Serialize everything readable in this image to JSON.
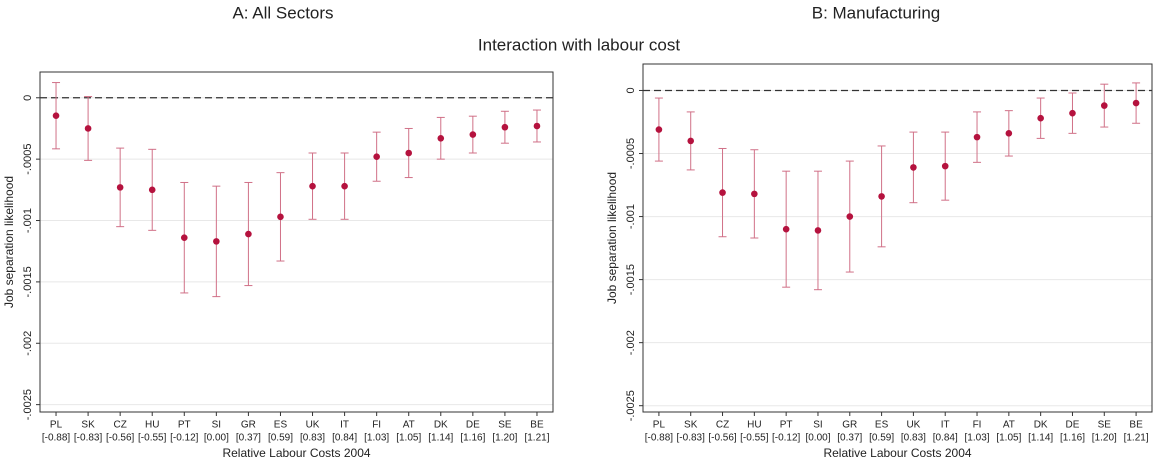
{
  "title": "Interaction with labour cost",
  "chart_data": [
    {
      "type": "errorbar",
      "title": "A: All Sectors",
      "x_label": "Relative Labour Costs 2004",
      "y_label": "Job separation likelihood",
      "categories": [
        "PL",
        "SK",
        "CZ",
        "HU",
        "PT",
        "SI",
        "GR",
        "ES",
        "UK",
        "IT",
        "FI",
        "AT",
        "DK",
        "DE",
        "SE",
        "BE"
      ],
      "category_sublabels": [
        "[-0.88]",
        "[-0.83]",
        "[-0.56]",
        "[-0.55]",
        "[-0.12]",
        "[0.00]",
        "[0.37]",
        "[0.59]",
        "[0.83]",
        "[0.84]",
        "[1.03]",
        "[1.05]",
        "[1.14]",
        "[1.16]",
        "[1.20]",
        "[1.21]"
      ],
      "values": [
        -0.000146,
        -0.00025,
        -0.00073,
        -0.00075,
        -0.00114,
        -0.00117,
        -0.00111,
        -0.00097,
        -0.00072,
        -0.00072,
        -0.00048,
        -0.00045,
        -0.00033,
        -0.0003,
        -0.00024,
        -0.00023
      ],
      "errors": [
        0.00027,
        0.00026,
        0.00032,
        0.00033,
        0.00045,
        0.00045,
        0.00042,
        0.00036,
        0.00027,
        0.00027,
        0.0002,
        0.0002,
        0.00017,
        0.00015,
        0.00013,
        0.00013
      ],
      "color": "#b5123e",
      "error_color": "#d07087",
      "ylim": [
        -0.00256,
        0.00021
      ],
      "yticks": [
        0,
        {
          "value": -0.0005,
          "label": "-.0005"
        },
        {
          "value": -0.001,
          "label": "-.001"
        },
        {
          "value": -0.0015,
          "label": "-.0015"
        },
        {
          "value": -0.002,
          "label": "-.002"
        },
        {
          "value": -0.0025,
          "label": "-.0025"
        }
      ],
      "grid": true,
      "zero_line": true
    },
    {
      "type": "errorbar",
      "title": "B: Manufacturing",
      "x_label": "Relative Labour Costs 2004",
      "y_label": "Job separation likelihood",
      "categories": [
        "PL",
        "SK",
        "CZ",
        "HU",
        "PT",
        "SI",
        "GR",
        "ES",
        "UK",
        "IT",
        "FI",
        "AT",
        "DK",
        "DE",
        "SE",
        "BE"
      ],
      "category_sublabels": [
        "[-0.88]",
        "[-0.83]",
        "[-0.56]",
        "[-0.55]",
        "[-0.12]",
        "[0.00]",
        "[0.37]",
        "[0.59]",
        "[0.83]",
        "[0.84]",
        "[1.03]",
        "[1.05]",
        "[1.14]",
        "[1.16]",
        "[1.20]",
        "[1.21]"
      ],
      "values": [
        -0.00031,
        -0.0004,
        -0.00081,
        -0.00082,
        -0.0011,
        -0.00111,
        -0.001,
        -0.00084,
        -0.00061,
        -0.0006,
        -0.00037,
        -0.00034,
        -0.00022,
        -0.00018,
        -0.00012,
        -0.0001
      ],
      "errors": [
        0.00025,
        0.00023,
        0.00035,
        0.00035,
        0.00046,
        0.00047,
        0.00044,
        0.0004,
        0.00028,
        0.00027,
        0.0002,
        0.00018,
        0.00016,
        0.00016,
        0.00017,
        0.00016
      ],
      "color": "#b5123e",
      "error_color": "#d07087",
      "ylim": [
        -0.00255,
        0.00021
      ],
      "yticks": [
        0,
        {
          "value": -0.0005,
          "label": "-.0005"
        },
        {
          "value": -0.001,
          "label": "-.001"
        },
        {
          "value": -0.0015,
          "label": "-.0015"
        },
        {
          "value": -0.002,
          "label": "-.002"
        },
        {
          "value": -0.0025,
          "label": "-.0025"
        }
      ],
      "grid": true,
      "zero_line": true
    }
  ]
}
